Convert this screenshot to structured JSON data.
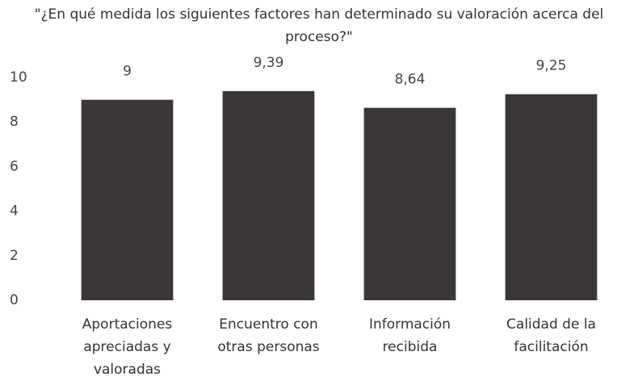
{
  "chart_data": {
    "type": "bar",
    "title": "\"¿En qué medida los siguientes factores han determinado su valoración acerca del proceso?\"",
    "categories": [
      "Aportaciones apreciadas y valoradas",
      "Encuentro con otras personas",
      "Información recibida",
      "Calidad de la facilitación"
    ],
    "values": [
      9,
      9.39,
      8.64,
      9.25
    ],
    "value_labels": [
      "9",
      "9,39",
      "8,64",
      "9,25"
    ],
    "color": "#3b3737",
    "ylim": [
      0,
      10
    ],
    "yticks": [
      0,
      2,
      4,
      6,
      8,
      10
    ],
    "grid": false
  }
}
